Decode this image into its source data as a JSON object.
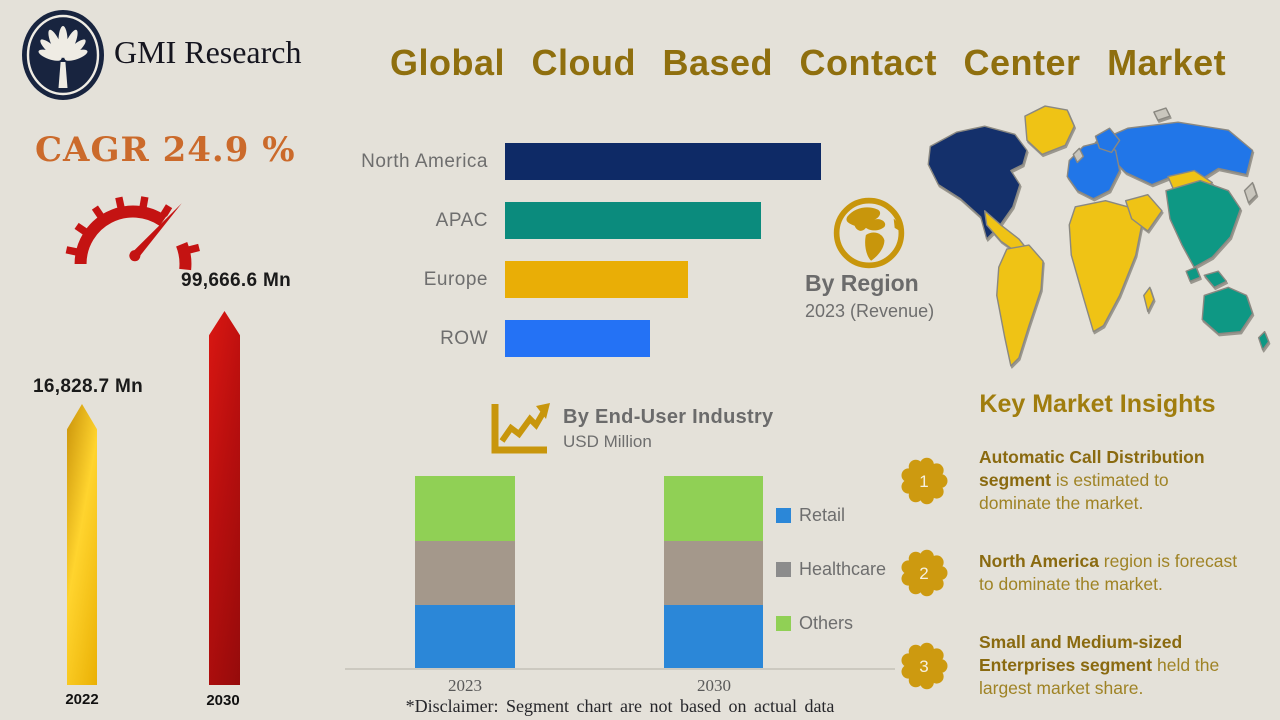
{
  "header": {
    "brand": "GMI Research",
    "title": "Global Cloud Based Contact Center Market"
  },
  "cagr": {
    "label": "CAGR 24.9 %",
    "start_value": "16,828.7 Mn",
    "start_year": "2022",
    "end_value": "99,666.6 Mn",
    "end_year": "2030"
  },
  "region_section": {
    "title": "By Region",
    "subtitle": "2023 (Revenue)"
  },
  "enduser_section": {
    "title": "By End-User Industry",
    "subtitle": "USD Million",
    "disclaimer": "*Disclaimer:  Segment chart are not based on actual data"
  },
  "insights": {
    "title": "Key Market Insights",
    "items": [
      {
        "num": "1",
        "bold": "Automatic Call Distribution segment",
        "rest": " is estimated to dominate the market."
      },
      {
        "num": "2",
        "bold": "North America",
        "rest": " region is forecast to dominate the market."
      },
      {
        "num": "3",
        "bold": "Small and Medium-sized Enterprises segment",
        "rest": " held the largest market share."
      }
    ]
  },
  "colors": {
    "background": "#e4e1d9",
    "title_gold": "#8f6f0e",
    "cagr_orange": "#cb6a2b",
    "speedometer_red": "#c41312",
    "badge_gold": "#cd9a10",
    "insight_text": "#9f8325"
  },
  "chart_data": [
    {
      "type": "bar",
      "orientation": "horizontal",
      "title": "By Region",
      "subtitle": "2023 (Revenue)",
      "categories": [
        "North America",
        "APAC",
        "Europe",
        "ROW"
      ],
      "values_pct_of_max": [
        100,
        81,
        58,
        46
      ],
      "colors": [
        "#0e2a66",
        "#0b8b7d",
        "#e9ae06",
        "#2472f5"
      ],
      "note": "no numeric axis shown; lengths estimated relative to largest bar"
    },
    {
      "type": "bar",
      "stacked": true,
      "title": "By End-User Industry",
      "ylabel": "USD Million",
      "categories": [
        "2023",
        "2030"
      ],
      "series": [
        {
          "name": "Retail",
          "color": "#2b87d8",
          "legend_color": "#2b87d8",
          "values": [
            33,
            33
          ]
        },
        {
          "name": "Healthcare",
          "color": "#a4988b",
          "legend_color": "#8c8c8c",
          "values": [
            33,
            33
          ]
        },
        {
          "name": "Others",
          "color": "#90d055",
          "legend_color": "#90d055",
          "values": [
            34,
            34
          ]
        }
      ],
      "legend_position": "right",
      "note": "*Disclaimer: Segment chart are not based on actual data"
    },
    {
      "type": "bar",
      "title": "Market size (USD Mn)",
      "categories": [
        "2022",
        "2030"
      ],
      "values": [
        16828.7,
        99666.6
      ],
      "cagr_pct": 24.9
    }
  ]
}
